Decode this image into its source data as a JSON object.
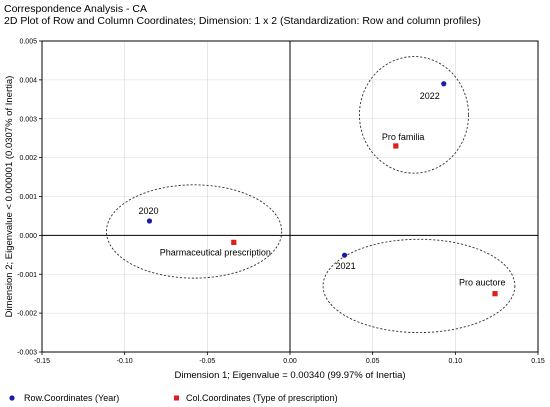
{
  "header": {
    "title": "Correspondence Analysis - CA",
    "subtitle": "2D Plot of Row and Column Coordinates; Dimension: 1 x 2 (Standardization: Row and column profiles)"
  },
  "chart_data": {
    "type": "scatter",
    "xlabel": "Dimension 1; Eigenvalue = 0.00340 (99.97% of Inertia)",
    "ylabel": "Dimension 2; Eigenvalue < 0.000001 (0.0307% of Inertia)",
    "xlim": [
      -0.15,
      0.15
    ],
    "ylim": [
      -0.003,
      0.005
    ],
    "x_ticks": [
      "-0.15",
      "-0.10",
      "-0.05",
      "0.00",
      "0.05",
      "0.10",
      "0.15"
    ],
    "x_tick_values": [
      -0.15,
      -0.1,
      -0.05,
      0.0,
      0.05,
      0.1,
      0.15
    ],
    "y_ticks": [
      "0.005",
      "0.004",
      "0.003",
      "0.002",
      "0.001",
      "0.000",
      "-0.001",
      "-0.002",
      "-0.003"
    ],
    "y_tick_values": [
      0.005,
      0.004,
      0.003,
      0.002,
      0.001,
      0.0,
      -0.001,
      -0.002,
      -0.003
    ],
    "grid": true,
    "zero_lines": true,
    "series": [
      {
        "name": "Row.Coordinates (Year)",
        "marker": "circle",
        "color": "#1c1ca8",
        "points": [
          {
            "label": "2020",
            "x": -0.085,
            "y": 0.00037
          },
          {
            "label": "2021",
            "x": 0.033,
            "y": -0.00051
          },
          {
            "label": "2022",
            "x": 0.093,
            "y": 0.0039
          }
        ]
      },
      {
        "name": "Col.Coordinates (Type of prescription)",
        "marker": "square",
        "color": "#e01c1c",
        "points": [
          {
            "label": "Pharmaceutical prescription",
            "x": -0.034,
            "y": -0.00018
          },
          {
            "label": "Pro familia",
            "x": 0.064,
            "y": 0.0023
          },
          {
            "label": "Pro auctore",
            "x": 0.124,
            "y": -0.0015
          }
        ]
      }
    ],
    "ellipses": [
      {
        "cx": -0.058,
        "cy": 0.0001,
        "rx": 0.053,
        "ry": 0.0012
      },
      {
        "cx": 0.075,
        "cy": 0.0031,
        "rx": 0.033,
        "ry": 0.0015
      },
      {
        "cx": 0.078,
        "cy": -0.0013,
        "rx": 0.058,
        "ry": 0.0012
      }
    ],
    "legend": "bottom"
  }
}
